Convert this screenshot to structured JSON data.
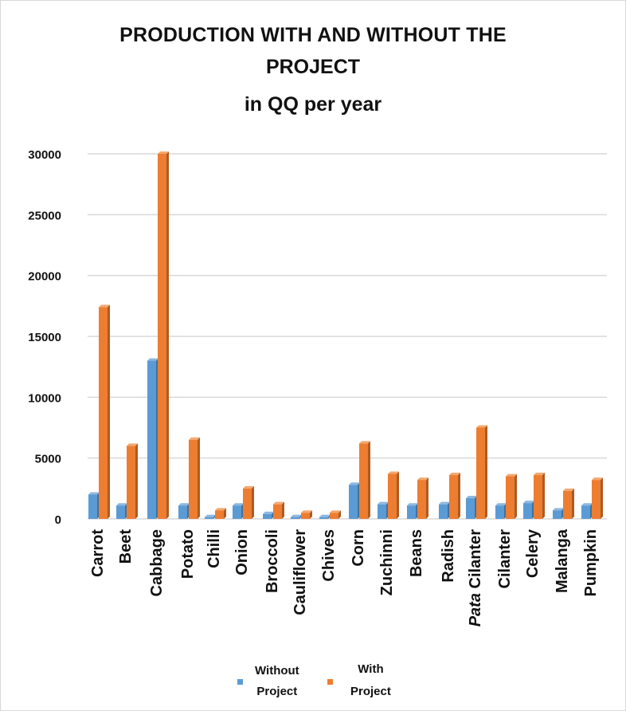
{
  "chart_data": {
    "type": "bar",
    "title": "PRODUCTION WITH AND WITHOUT THE PROJECT",
    "subtitle": "in QQ per year",
    "categories": [
      "Carrot",
      "Beet",
      "Cabbage",
      "Potato",
      "Chilli",
      "Onion",
      "Broccoli",
      "Cauliflower",
      "Chives",
      "Corn",
      "Zuchinni",
      "Beans",
      "Radish",
      "Pata Cilanter",
      "Cilanter",
      "Celery",
      "Malanga",
      "Pumpkin"
    ],
    "series": [
      {
        "name": "Without Project",
        "color": "#5b9bd5",
        "values": [
          2000,
          1100,
          13000,
          1100,
          150,
          1100,
          400,
          150,
          150,
          2800,
          1200,
          1100,
          1200,
          1700,
          1100,
          1300,
          700,
          1100
        ]
      },
      {
        "name": "With Project",
        "color": "#ed7d31",
        "values": [
          17400,
          6000,
          30000,
          6500,
          700,
          2500,
          1200,
          500,
          500,
          6200,
          3700,
          3200,
          3600,
          7500,
          3500,
          3600,
          2300,
          3200
        ]
      }
    ],
    "ylim": [
      0,
      30000
    ],
    "yticks": [
      0,
      5000,
      10000,
      15000,
      20000,
      25000,
      30000
    ],
    "grid": true,
    "legend": "bottom",
    "legend_labels": {
      "without": [
        "Without",
        "Project"
      ],
      "with": [
        "With",
        "Project"
      ]
    }
  }
}
